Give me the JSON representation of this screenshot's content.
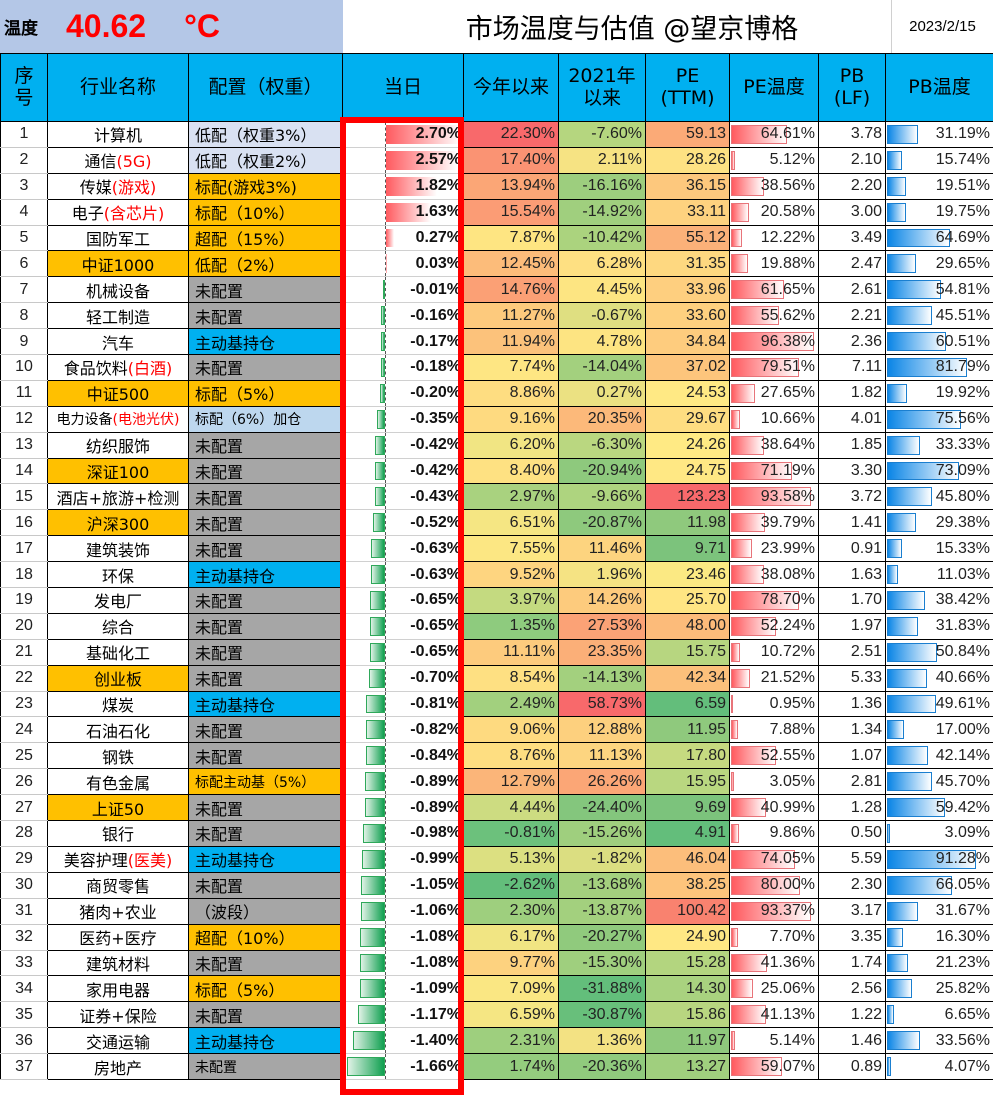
{
  "header": {
    "temp_label": "温度",
    "temp_value": "40.62",
    "temp_unit": "°C",
    "title": "市场温度与估值  @望京博格",
    "date": "2023/2/15"
  },
  "colors": {
    "header_bg": "#00b0f0",
    "top_bg": "#b4c7e7",
    "highlight_red": "#ff0000",
    "alloc_orange": "#ffc000",
    "alloc_gray": "#a6a6a6",
    "alloc_blue": "#00b0f0",
    "alloc_light": "#d9e1f2",
    "alloc_lightblue": "#bdd7ee"
  },
  "columns": [
    "序号",
    "行业名称",
    "配置（权重）",
    "当日",
    "今年以来",
    "2021年以来",
    "PE (TTM)",
    "PE温度",
    "PB (LF)",
    "PB温度"
  ],
  "columns_html": {
    "idx": [
      "序",
      "号"
    ],
    "name": "行业名称",
    "alloc": "配置（权重）",
    "day": "当日",
    "ytd": "今年以来",
    "since2021": [
      "2021年",
      "以来"
    ],
    "pe": [
      "PE",
      "(TTM)"
    ],
    "pe_temp": "PE温度",
    "pb": [
      "PB",
      "(LF)"
    ],
    "pb_temp": "PB温度"
  },
  "rows": [
    {
      "idx": "1",
      "name": "计算机",
      "name_hl": "",
      "name_bg": "#ffffff",
      "alloc": "低配（权重3%）",
      "alloc_bg": "#d9e1f2",
      "day": "2.70%",
      "day_v": 2.7,
      "ytd": "22.30%",
      "ytd_bg": "#f8696b",
      "s21": "-7.60%",
      "s21_bg": "#b5d67f",
      "pe": "59.13",
      "pe_bg": "#fbaa77",
      "pe_t": "64.61%",
      "pe_tv": 64.61,
      "pb": "3.78",
      "pb_t": "31.19%",
      "pb_tv": 31.19
    },
    {
      "idx": "2",
      "name": "通信",
      "name_hl": "(5G)",
      "name_bg": "#ffffff",
      "alloc": "低配（权重2%）",
      "alloc_bg": "#d9e1f2",
      "day": "2.57%",
      "day_v": 2.57,
      "ytd": "17.40%",
      "ytd_bg": "#fa9373",
      "s21": "2.11%",
      "s21_bg": "#f6e383",
      "pe": "28.26",
      "pe_bg": "#fee283",
      "pe_t": "5.12%",
      "pe_tv": 5.12,
      "pb": "2.10",
      "pb_t": "15.74%",
      "pb_tv": 15.74
    },
    {
      "idx": "3",
      "name": "传媒",
      "name_hl": "(游戏)",
      "name_bg": "#ffffff",
      "alloc": "标配(游戏3%)",
      "alloc_bg": "#ffc000",
      "day": "1.82%",
      "day_v": 1.82,
      "ytd": "13.94%",
      "ytd_bg": "#fba676",
      "s21": "-16.16%",
      "s21_bg": "#9dce7e",
      "pe": "36.15",
      "pe_bg": "#fdc87d",
      "pe_t": "38.56%",
      "pe_tv": 38.56,
      "pb": "2.20",
      "pb_t": "19.51%",
      "pb_tv": 19.51
    },
    {
      "idx": "4",
      "name": "电子",
      "name_hl": "(含芯片)",
      "name_bg": "#ffffff",
      "alloc": "标配（10%）",
      "alloc_bg": "#ffc000",
      "day": "1.63%",
      "day_v": 1.63,
      "ytd": "15.54%",
      "ytd_bg": "#fb9c75",
      "s21": "-14.92%",
      "s21_bg": "#a0cf7e",
      "pe": "33.11",
      "pe_bg": "#fed27f",
      "pe_t": "20.58%",
      "pe_tv": 20.58,
      "pb": "3.00",
      "pb_t": "19.75%",
      "pb_tv": 19.75
    },
    {
      "idx": "5",
      "name": "国防军工",
      "name_hl": "",
      "name_bg": "#ffffff",
      "alloc": "超配（15%）",
      "alloc_bg": "#ffc000",
      "day": "0.27%",
      "day_v": 0.27,
      "ytd": "7.87%",
      "ytd_bg": "#fee582",
      "s21": "-10.42%",
      "s21_bg": "#abd37e",
      "pe": "55.12",
      "pe_bg": "#fbb179",
      "pe_t": "12.22%",
      "pe_tv": 12.22,
      "pb": "3.49",
      "pb_t": "64.69%",
      "pb_tv": 64.69
    },
    {
      "idx": "6",
      "name": "中证1000",
      "name_hl": "",
      "name_bg": "#ffc000",
      "alloc": "低配（2%）",
      "alloc_bg": "#ffc000",
      "day": "0.03%",
      "day_v": 0.03,
      "ytd": "12.45%",
      "ytd_bg": "#fcbc7a",
      "s21": "6.28%",
      "s21_bg": "#fee082",
      "pe": "31.35",
      "pe_bg": "#fed880",
      "pe_t": "19.88%",
      "pe_tv": 19.88,
      "pb": "2.47",
      "pb_t": "29.65%",
      "pb_tv": 29.65
    },
    {
      "idx": "7",
      "name": "机械设备",
      "name_hl": "",
      "name_bg": "#ffffff",
      "alloc": "未配置",
      "alloc_bg": "#a6a6a6",
      "day": "-0.01%",
      "day_v": -0.01,
      "ytd": "14.76%",
      "ytd_bg": "#fba075",
      "s21": "4.45%",
      "s21_bg": "#fde582",
      "pe": "33.96",
      "pe_bg": "#fecf7f",
      "pe_t": "61.65%",
      "pe_tv": 61.65,
      "pb": "2.61",
      "pb_t": "54.81%",
      "pb_tv": 54.81
    },
    {
      "idx": "8",
      "name": "轻工制造",
      "name_hl": "",
      "name_bg": "#ffffff",
      "alloc": "未配置",
      "alloc_bg": "#a6a6a6",
      "day": "-0.16%",
      "day_v": -0.16,
      "ytd": "11.27%",
      "ytd_bg": "#fdca7d",
      "s21": "-0.67%",
      "s21_bg": "#dfdf81",
      "pe": "33.60",
      "pe_bg": "#fed07f",
      "pe_t": "55.62%",
      "pe_tv": 55.62,
      "pb": "2.21",
      "pb_t": "45.51%",
      "pb_tv": 45.51
    },
    {
      "idx": "9",
      "name": "汽车",
      "name_hl": "",
      "name_bg": "#ffffff",
      "alloc": "主动基持仓",
      "alloc_bg": "#00b0f0",
      "day": "-0.17%",
      "day_v": -0.17,
      "ytd": "11.94%",
      "ytd_bg": "#fcc27b",
      "s21": "4.78%",
      "s21_bg": "#fde482",
      "pe": "34.84",
      "pe_bg": "#fecc7e",
      "pe_t": "96.38%",
      "pe_tv": 96.38,
      "pb": "2.36",
      "pb_t": "60.51%",
      "pb_tv": 60.51
    },
    {
      "idx": "10",
      "name": "食品饮料",
      "name_hl": "(白酒)",
      "name_bg": "#ffffff",
      "alloc": "未配置",
      "alloc_bg": "#a6a6a6",
      "day": "-0.18%",
      "day_v": -0.18,
      "ytd": "7.74%",
      "ytd_bg": "#fee683",
      "s21": "-14.04%",
      "s21_bg": "#a3d07e",
      "pe": "37.02",
      "pe_bg": "#fdc57c",
      "pe_t": "79.51%",
      "pe_tv": 79.51,
      "pb": "7.11",
      "pb_t": "81.79%",
      "pb_tv": 81.79
    },
    {
      "idx": "11",
      "name": "中证500",
      "name_hl": "",
      "name_bg": "#ffc000",
      "alloc": "标配（5%）",
      "alloc_bg": "#ffc000",
      "day": "-0.20%",
      "day_v": -0.2,
      "ytd": "8.86%",
      "ytd_bg": "#fedd81",
      "s21": "0.27%",
      "s21_bg": "#ebe182",
      "pe": "24.53",
      "pe_bg": "#ffe984",
      "pe_t": "27.65%",
      "pe_tv": 27.65,
      "pb": "1.82",
      "pb_t": "19.92%",
      "pb_tv": 19.92
    },
    {
      "idx": "12",
      "name": "电力设备",
      "name_hl": "(电池光伏)",
      "name_bg": "#ffffff",
      "name_small": true,
      "alloc": "标配（6%）加仓",
      "alloc_bg": "#bdd7ee",
      "alloc_small": true,
      "day": "-0.35%",
      "day_v": -0.35,
      "ytd": "9.16%",
      "ytd_bg": "#feda80",
      "s21": "20.35%",
      "s21_bg": "#fcb97a",
      "pe": "29.67",
      "pe_bg": "#fedd81",
      "pe_t": "10.66%",
      "pe_tv": 10.66,
      "pb": "4.01",
      "pb_t": "75.56%",
      "pb_tv": 75.56
    },
    {
      "idx": "13",
      "name": "纺织服饰",
      "name_hl": "",
      "name_bg": "#ffffff",
      "alloc": "未配置",
      "alloc_bg": "#a6a6a6",
      "day": "-0.42%",
      "day_v": -0.42,
      "ytd": "6.20%",
      "ytd_bg": "#f1e583",
      "s21": "-6.30%",
      "s21_bg": "#bad780",
      "pe": "24.26",
      "pe_bg": "#ffea84",
      "pe_t": "38.64%",
      "pe_tv": 38.64,
      "pb": "1.85",
      "pb_t": "33.33%",
      "pb_tv": 33.33
    },
    {
      "idx": "14",
      "name": "深证100",
      "name_hl": "",
      "name_bg": "#ffc000",
      "alloc": "未配置",
      "alloc_bg": "#a6a6a6",
      "day": "-0.42%",
      "day_v": -0.42,
      "ytd": "8.40%",
      "ytd_bg": "#fee182",
      "s21": "-20.94%",
      "s21_bg": "#8ec97d",
      "pe": "24.75",
      "pe_bg": "#ffe884",
      "pe_t": "71.19%",
      "pe_tv": 71.19,
      "pb": "3.30",
      "pb_t": "73.09%",
      "pb_tv": 73.09
    },
    {
      "idx": "15",
      "name": "酒店+旅游+检测",
      "name_hl": "",
      "name_bg": "#ffffff",
      "alloc": "未配置",
      "alloc_bg": "#a6a6a6",
      "day": "-0.43%",
      "day_v": -0.43,
      "ytd": "2.97%",
      "ytd_bg": "#a9d27f",
      "s21": "-9.66%",
      "s21_bg": "#aed47f",
      "pe": "123.23",
      "pe_bg": "#f8696b",
      "pe_t": "93.58%",
      "pe_tv": 93.58,
      "pb": "3.72",
      "pb_t": "45.80%",
      "pb_tv": 45.8
    },
    {
      "idx": "16",
      "name": "沪深300",
      "name_hl": "",
      "name_bg": "#ffc000",
      "alloc": "未配置",
      "alloc_bg": "#a6a6a6",
      "day": "-0.52%",
      "day_v": -0.52,
      "ytd": "6.51%",
      "ytd_bg": "#f5e683",
      "s21": "-20.87%",
      "s21_bg": "#8ec97d",
      "pe": "11.98",
      "pe_bg": "#8fc97d",
      "pe_t": "39.79%",
      "pe_tv": 39.79,
      "pb": "1.41",
      "pb_t": "29.38%",
      "pb_tv": 29.38
    },
    {
      "idx": "17",
      "name": "建筑装饰",
      "name_hl": "",
      "name_bg": "#ffffff",
      "alloc": "未配置",
      "alloc_bg": "#a6a6a6",
      "day": "-0.63%",
      "day_v": -0.63,
      "ytd": "7.55%",
      "ytd_bg": "#fce783",
      "s21": "11.46%",
      "s21_bg": "#fdd47f",
      "pe": "9.71",
      "pe_bg": "#7cc37c",
      "pe_t": "23.99%",
      "pe_tv": 23.99,
      "pb": "0.91",
      "pb_t": "15.33%",
      "pb_tv": 15.33
    },
    {
      "idx": "18",
      "name": "环保",
      "name_hl": "",
      "name_bg": "#ffffff",
      "alloc": "主动基持仓",
      "alloc_bg": "#00b0f0",
      "day": "-0.63%",
      "day_v": -0.63,
      "ytd": "9.52%",
      "ytd_bg": "#fed580",
      "s21": "1.96%",
      "s21_bg": "#f5e383",
      "pe": "23.46",
      "pe_bg": "#fbe983",
      "pe_t": "38.08%",
      "pe_tv": 38.08,
      "pb": "1.63",
      "pb_t": "11.03%",
      "pb_tv": 11.03
    },
    {
      "idx": "19",
      "name": "发电厂",
      "name_hl": "",
      "name_bg": "#ffffff",
      "alloc": "未配置",
      "alloc_bg": "#a6a6a6",
      "day": "-0.65%",
      "day_v": -0.65,
      "ytd": "3.97%",
      "ytd_bg": "#c4da80",
      "s21": "14.26%",
      "s21_bg": "#fdcb7d",
      "pe": "25.70",
      "pe_bg": "#ffe583",
      "pe_t": "78.70%",
      "pe_tv": 78.7,
      "pb": "1.70",
      "pb_t": "38.42%",
      "pb_tv": 38.42
    },
    {
      "idx": "20",
      "name": "综合",
      "name_hl": "",
      "name_bg": "#ffffff",
      "alloc": "未配置",
      "alloc_bg": "#a6a6a6",
      "day": "-0.65%",
      "day_v": -0.65,
      "ytd": "1.35%",
      "ytd_bg": "#8ecb7e",
      "s21": "27.53%",
      "s21_bg": "#fba276",
      "pe": "48.00",
      "pe_bg": "#fcbb7a",
      "pe_t": "52.24%",
      "pe_tv": 52.24,
      "pb": "1.97",
      "pb_t": "31.83%",
      "pb_tv": 31.83
    },
    {
      "idx": "21",
      "name": "基础化工",
      "name_hl": "",
      "name_bg": "#ffffff",
      "alloc": "未配置",
      "alloc_bg": "#a6a6a6",
      "day": "-0.65%",
      "day_v": -0.65,
      "ytd": "11.11%",
      "ytd_bg": "#fdcb7d",
      "s21": "23.35%",
      "s21_bg": "#fbaf78",
      "pe": "15.75",
      "pe_bg": "#b7d680",
      "pe_t": "10.72%",
      "pe_tv": 10.72,
      "pb": "2.51",
      "pb_t": "50.84%",
      "pb_tv": 50.84
    },
    {
      "idx": "22",
      "name": "创业板",
      "name_hl": "",
      "name_bg": "#ffc000",
      "alloc": "未配置",
      "alloc_bg": "#a6a6a6",
      "day": "-0.70%",
      "day_v": -0.7,
      "ytd": "8.54%",
      "ytd_bg": "#fee082",
      "s21": "-14.13%",
      "s21_bg": "#a3d07e",
      "pe": "42.34",
      "pe_bg": "#fcc07b",
      "pe_t": "21.52%",
      "pe_tv": 21.52,
      "pb": "5.33",
      "pb_t": "40.66%",
      "pb_tv": 40.66
    },
    {
      "idx": "23",
      "name": "煤炭",
      "name_hl": "",
      "name_bg": "#ffffff",
      "alloc": "主动基持仓",
      "alloc_bg": "#00b0f0",
      "day": "-0.81%",
      "day_v": -0.81,
      "ytd": "2.49%",
      "ytd_bg": "#a2d07e",
      "s21": "58.73%",
      "s21_bg": "#f8696b",
      "pe": "6.59",
      "pe_bg": "#63be7b",
      "pe_t": "0.95%",
      "pe_tv": 0.95,
      "pb": "1.36",
      "pb_t": "49.61%",
      "pb_tv": 49.61
    },
    {
      "idx": "24",
      "name": "石油石化",
      "name_hl": "",
      "name_bg": "#ffffff",
      "alloc": "未配置",
      "alloc_bg": "#a6a6a6",
      "day": "-0.82%",
      "day_v": -0.82,
      "ytd": "9.06%",
      "ytd_bg": "#feda80",
      "s21": "12.88%",
      "s21_bg": "#fdd07e",
      "pe": "11.95",
      "pe_bg": "#8fc97d",
      "pe_t": "7.88%",
      "pe_tv": 7.88,
      "pb": "1.34",
      "pb_t": "17.00%",
      "pb_tv": 17.0
    },
    {
      "idx": "25",
      "name": "钢铁",
      "name_hl": "",
      "name_bg": "#ffffff",
      "alloc": "未配置",
      "alloc_bg": "#a6a6a6",
      "day": "-0.84%",
      "day_v": -0.84,
      "ytd": "8.76%",
      "ytd_bg": "#fede81",
      "s21": "11.13%",
      "s21_bg": "#fdd580",
      "pe": "17.80",
      "pe_bg": "#c6da80",
      "pe_t": "52.55%",
      "pe_tv": 52.55,
      "pb": "1.07",
      "pb_t": "42.14%",
      "pb_tv": 42.14
    },
    {
      "idx": "26",
      "name": "有色金属",
      "name_hl": "",
      "name_bg": "#ffffff",
      "alloc": "标配主动基（5%）",
      "alloc_bg": "#ffc000",
      "alloc_small": true,
      "day": "-0.89%",
      "day_v": -0.89,
      "ytd": "12.79%",
      "ytd_bg": "#fbb579",
      "s21": "26.26%",
      "s21_bg": "#fba676",
      "pe": "15.95",
      "pe_bg": "#b9d780",
      "pe_t": "3.05%",
      "pe_tv": 3.05,
      "pb": "2.81",
      "pb_t": "45.70%",
      "pb_tv": 45.7
    },
    {
      "idx": "27",
      "name": "上证50",
      "name_hl": "",
      "name_bg": "#ffc000",
      "alloc": "未配置",
      "alloc_bg": "#a6a6a6",
      "day": "-0.89%",
      "day_v": -0.89,
      "ytd": "4.44%",
      "ytd_bg": "#cddc81",
      "s21": "-24.40%",
      "s21_bg": "#84c67d",
      "pe": "9.69",
      "pe_bg": "#7cc37c",
      "pe_t": "40.99%",
      "pe_tv": 40.99,
      "pb": "1.28",
      "pb_t": "59.42%",
      "pb_tv": 59.42
    },
    {
      "idx": "28",
      "name": "银行",
      "name_hl": "",
      "name_bg": "#ffffff",
      "alloc": "未配置",
      "alloc_bg": "#a6a6a6",
      "day": "-0.98%",
      "day_v": -0.98,
      "ytd": "-0.81%",
      "ytd_bg": "#6cc17c",
      "s21": "-15.26%",
      "s21_bg": "#9fcf7e",
      "pe": "4.91",
      "pe_bg": "#63be7b",
      "pe_t": "9.86%",
      "pe_tv": 9.86,
      "pb": "0.50",
      "pb_t": "3.09%",
      "pb_tv": 3.09
    },
    {
      "idx": "29",
      "name": "美容护理",
      "name_hl": "(医美)",
      "name_bg": "#ffffff",
      "alloc": "主动基持仓",
      "alloc_bg": "#00b0f0",
      "day": "-0.99%",
      "day_v": -0.99,
      "ytd": "5.13%",
      "ytd_bg": "#dce081",
      "s21": "-1.82%",
      "s21_bg": "#dbde81",
      "pe": "46.04",
      "pe_bg": "#fcbe7b",
      "pe_t": "74.05%",
      "pe_tv": 74.05,
      "pb": "5.59",
      "pb_t": "91.28%",
      "pb_tv": 91.28
    },
    {
      "idx": "30",
      "name": "商贸零售",
      "name_hl": "",
      "name_bg": "#ffffff",
      "alloc": "未配置",
      "alloc_bg": "#a6a6a6",
      "day": "-1.05%",
      "day_v": -1.05,
      "ytd": "-2.62%",
      "ytd_bg": "#63be7b",
      "s21": "-13.68%",
      "s21_bg": "#a4d07e",
      "pe": "38.25",
      "pe_bg": "#fdc47c",
      "pe_t": "80.00%",
      "pe_tv": 80.0,
      "pb": "2.30",
      "pb_t": "66.05%",
      "pb_tv": 66.05
    },
    {
      "idx": "31",
      "name": "猪肉+农业",
      "name_hl": "",
      "name_bg": "#ffffff",
      "alloc": "（波段）",
      "alloc_bg": "#a6a6a6",
      "day": "-1.06%",
      "day_v": -1.06,
      "ytd": "2.30%",
      "ytd_bg": "#9ecf7e",
      "s21": "-13.87%",
      "s21_bg": "#a3d07e",
      "pe": "100.42",
      "pe_bg": "#f9826f",
      "pe_t": "93.37%",
      "pe_tv": 93.37,
      "pb": "3.17",
      "pb_t": "31.67%",
      "pb_tv": 31.67
    },
    {
      "idx": "32",
      "name": "医药+医疗",
      "name_hl": "",
      "name_bg": "#ffffff",
      "alloc": "超配（10%）",
      "alloc_bg": "#ffc000",
      "day": "-1.08%",
      "day_v": -1.08,
      "ytd": "6.17%",
      "ytd_bg": "#f1e583",
      "s21": "-20.27%",
      "s21_bg": "#90ca7d",
      "pe": "24.90",
      "pe_bg": "#ffe884",
      "pe_t": "7.70%",
      "pe_tv": 7.7,
      "pb": "3.35",
      "pb_t": "16.30%",
      "pb_tv": 16.3
    },
    {
      "idx": "33",
      "name": "建筑材料",
      "name_hl": "",
      "name_bg": "#ffffff",
      "alloc": "未配置",
      "alloc_bg": "#a6a6a6",
      "day": "-1.08%",
      "day_v": -1.08,
      "ytd": "9.77%",
      "ytd_bg": "#fdd27f",
      "s21": "-15.30%",
      "s21_bg": "#9fcf7e",
      "pe": "15.28",
      "pe_bg": "#b3d57f",
      "pe_t": "41.36%",
      "pe_tv": 41.36,
      "pb": "1.74",
      "pb_t": "21.23%",
      "pb_tv": 21.23
    },
    {
      "idx": "34",
      "name": "家用电器",
      "name_hl": "",
      "name_bg": "#ffffff",
      "alloc": "标配（5%）",
      "alloc_bg": "#ffc000",
      "day": "-1.09%",
      "day_v": -1.09,
      "ytd": "7.09%",
      "ytd_bg": "#fae783",
      "s21": "-31.88%",
      "s21_bg": "#63be7b",
      "pe": "14.30",
      "pe_bg": "#a9d27f",
      "pe_t": "25.06%",
      "pe_tv": 25.06,
      "pb": "2.56",
      "pb_t": "25.82%",
      "pb_tv": 25.82
    },
    {
      "idx": "35",
      "name": "证券+保险",
      "name_hl": "",
      "name_bg": "#ffffff",
      "alloc": "未配置",
      "alloc_bg": "#a6a6a6",
      "day": "-1.17%",
      "day_v": -1.17,
      "ytd": "6.59%",
      "ytd_bg": "#f5e683",
      "s21": "-30.87%",
      "s21_bg": "#68bf7b",
      "pe": "15.86",
      "pe_bg": "#b8d680",
      "pe_t": "41.13%",
      "pe_tv": 41.13,
      "pb": "1.22",
      "pb_t": "6.65%",
      "pb_tv": 6.65
    },
    {
      "idx": "36",
      "name": "交通运输",
      "name_hl": "",
      "name_bg": "#ffffff",
      "alloc": "主动基持仓",
      "alloc_bg": "#00b0f0",
      "day": "-1.40%",
      "day_v": -1.4,
      "ytd": "2.31%",
      "ytd_bg": "#9ecf7e",
      "s21": "1.36%",
      "s21_bg": "#f3e283",
      "pe": "11.97",
      "pe_bg": "#8fc97d",
      "pe_t": "5.14%",
      "pe_tv": 5.14,
      "pb": "1.46",
      "pb_t": "33.56%",
      "pb_tv": 33.56
    },
    {
      "idx": "37",
      "name": "房地产",
      "name_hl": "",
      "name_bg": "#ffffff",
      "alloc": "未配置",
      "alloc_bg": "#a6a6a6",
      "alloc_small": true,
      "day": "-1.66%",
      "day_v": -1.66,
      "ytd": "1.74%",
      "ytd_bg": "#94cc7e",
      "s21": "-20.36%",
      "s21_bg": "#90ca7d",
      "pe": "13.27",
      "pe_bg": "#a0cf7e",
      "pe_t": "59.07%",
      "pe_tv": 59.07,
      "pb": "0.89",
      "pb_t": "4.07%",
      "pb_tv": 4.07
    }
  ]
}
